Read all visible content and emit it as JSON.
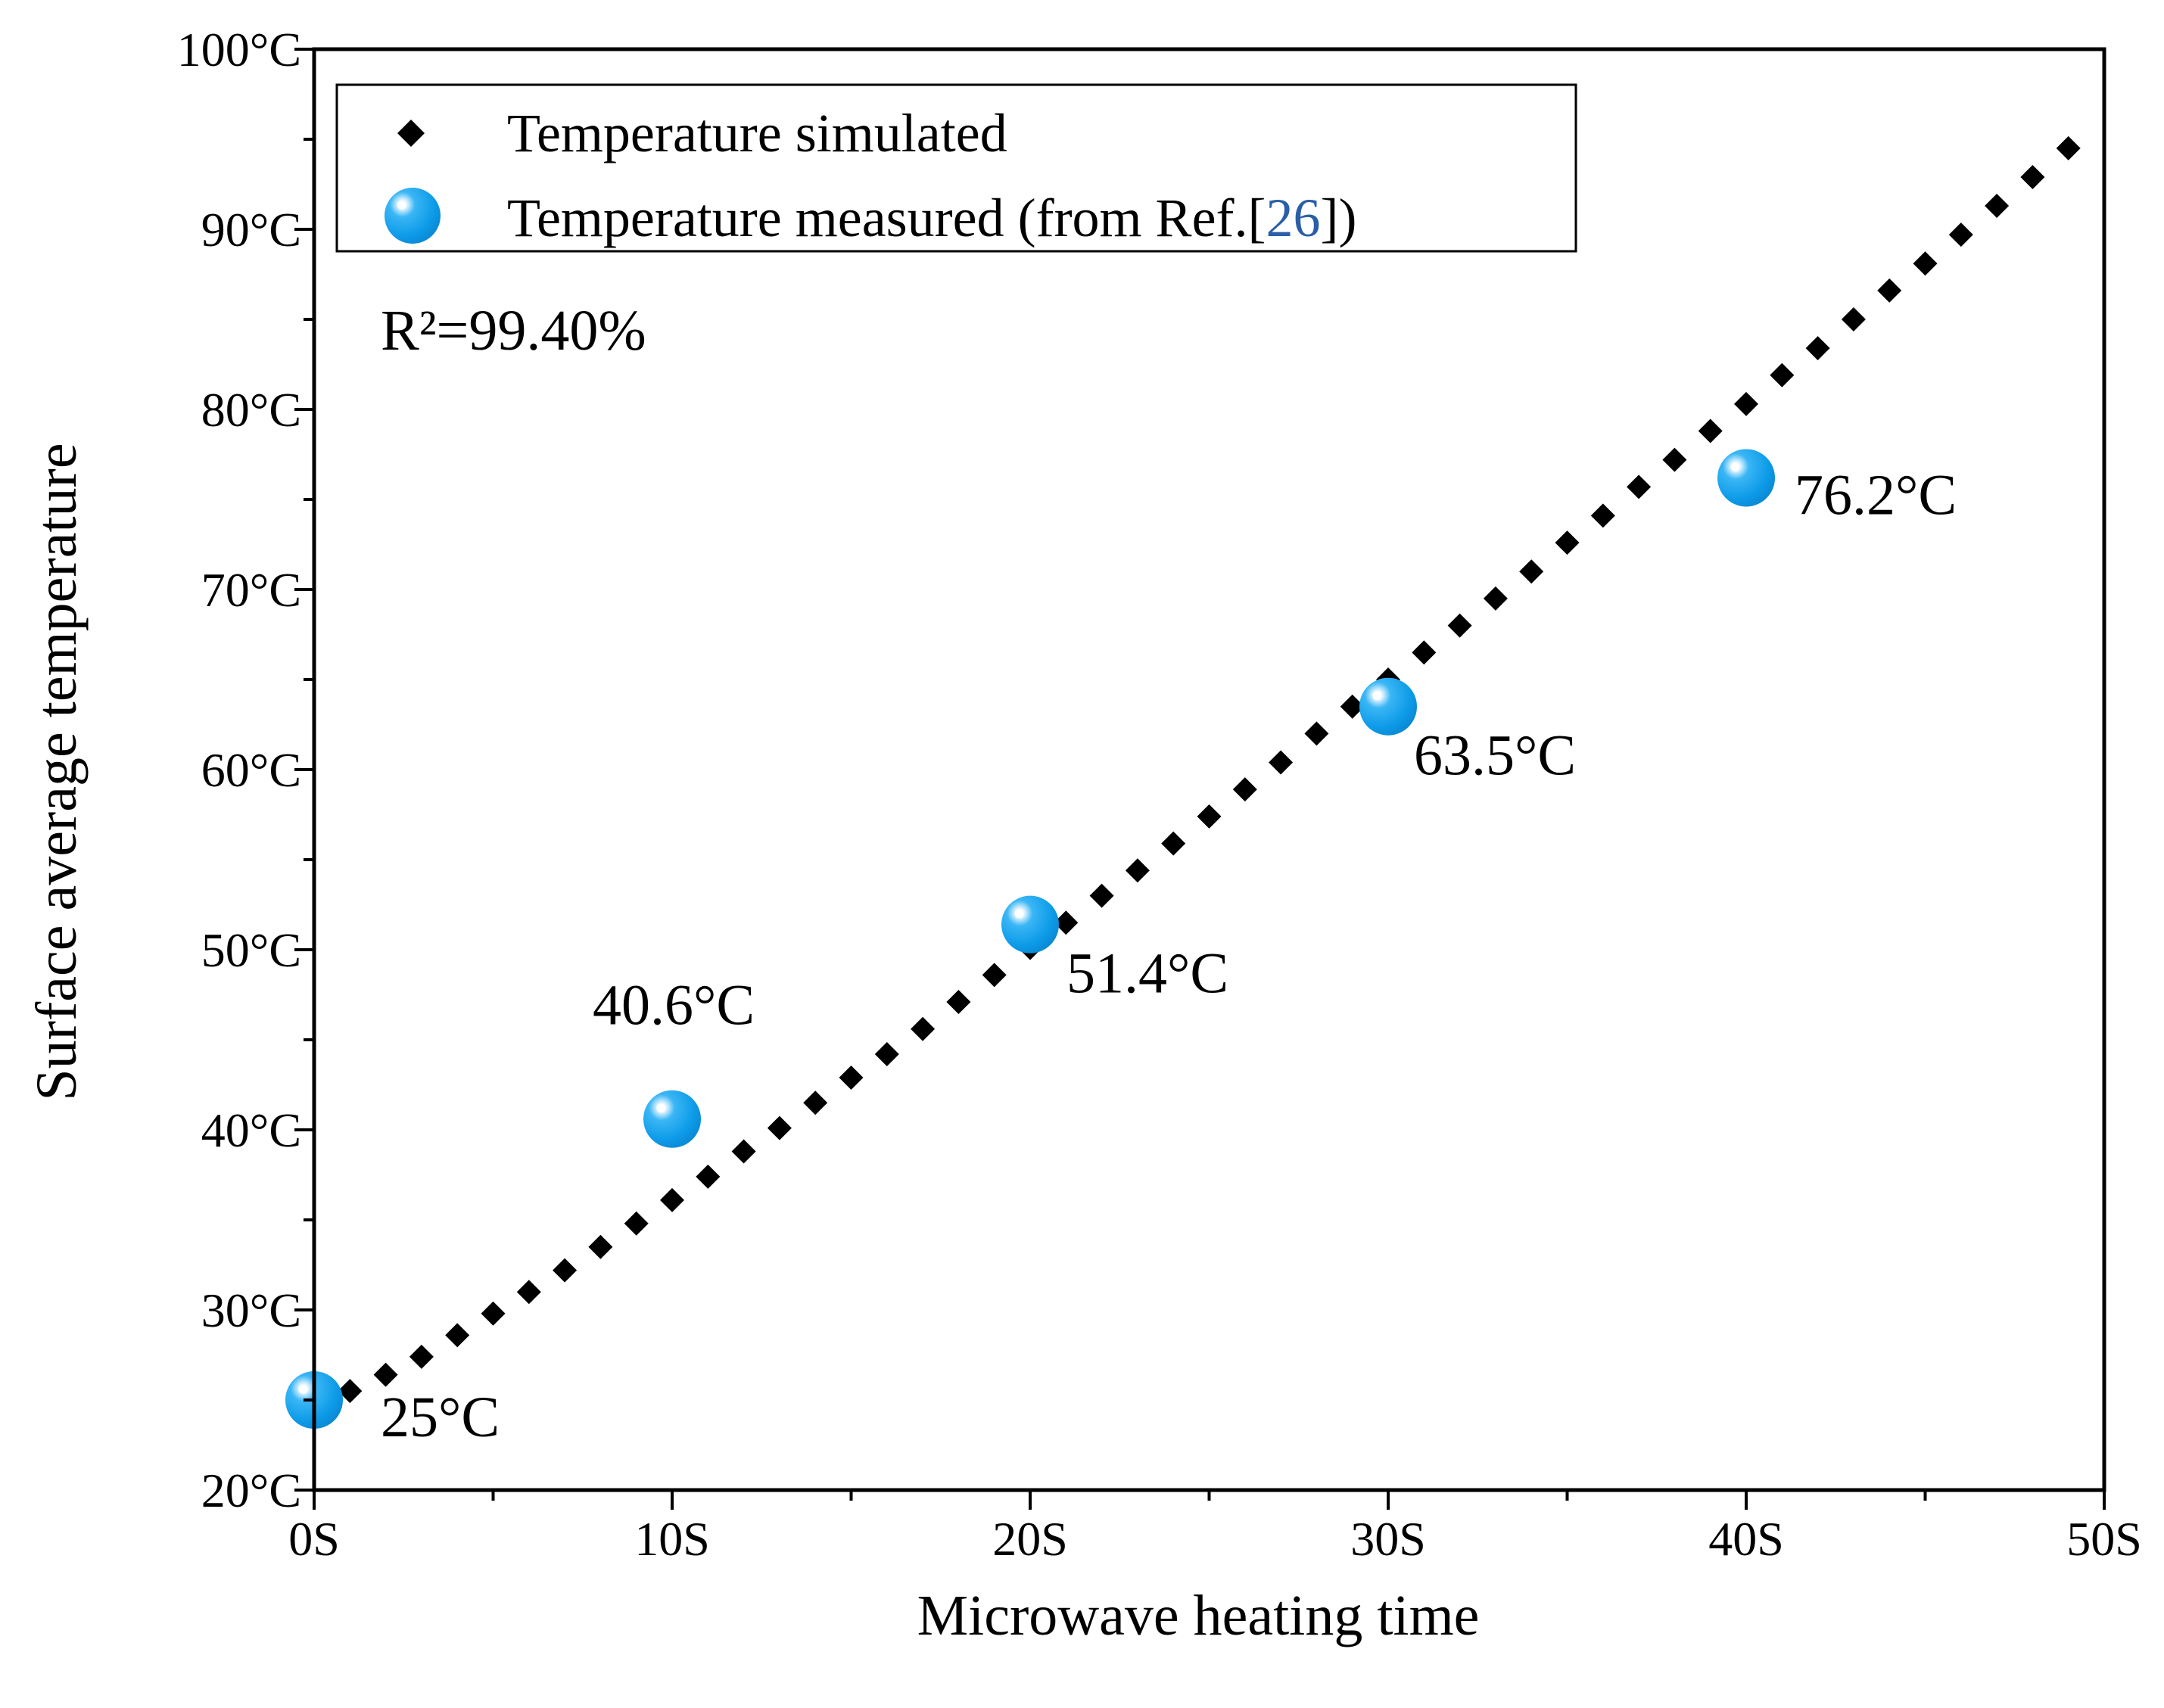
{
  "chart_data": {
    "type": "scatter",
    "xlabel": "Microwave heating time",
    "ylabel": "Surface average temperature",
    "xlim": [
      0,
      50
    ],
    "ylim": [
      20,
      100
    ],
    "x_ticks": [
      "0S",
      "10S",
      "20S",
      "30S",
      "40S",
      "50S"
    ],
    "y_ticks": [
      "20°C",
      "30°C",
      "40°C",
      "50°C",
      "60°C",
      "70°C",
      "80°C",
      "90°C",
      "100°C"
    ],
    "grid": false,
    "legend": {
      "placement": "top-left",
      "items": [
        {
          "label": "Temperature simulated",
          "marker": "diamond",
          "color": "#000000"
        },
        {
          "label_prefix": "Temperature measured (from Ref.[",
          "label_ref": "26",
          "label_suffix": "])",
          "marker": "sphere",
          "color": "#1aa3f0"
        }
      ]
    },
    "annotation_r2": "R²=99.40%",
    "series": [
      {
        "name": "Temperature simulated",
        "marker": "diamond",
        "color": "#000000",
        "x": [
          1,
          2,
          3,
          4,
          5,
          6,
          7,
          8,
          9,
          10,
          11,
          12,
          13,
          14,
          15,
          16,
          17,
          18,
          19,
          20,
          21,
          22,
          23,
          24,
          25,
          26,
          27,
          28,
          29,
          30,
          31,
          32,
          33,
          34,
          35,
          36,
          37,
          38,
          39,
          40,
          41,
          42,
          43,
          44,
          45,
          46,
          47,
          48,
          49
        ],
        "y": [
          25.5,
          26.4,
          27.4,
          28.6,
          29.8,
          31.0,
          32.2,
          33.5,
          34.8,
          36.1,
          37.4,
          38.8,
          40.1,
          41.5,
          42.9,
          44.2,
          45.6,
          47.1,
          48.6,
          50.1,
          51.5,
          53.0,
          54.4,
          55.9,
          57.4,
          58.9,
          60.4,
          62.0,
          63.5,
          65.0,
          66.5,
          68.0,
          69.5,
          71.0,
          72.6,
          74.1,
          75.7,
          77.2,
          78.8,
          80.3,
          81.9,
          83.4,
          85.0,
          86.6,
          88.1,
          89.7,
          91.3,
          92.9,
          94.5
        ]
      },
      {
        "name": "Temperature measured (from Ref.[26])",
        "marker": "sphere",
        "color": "#1aa3f0",
        "x": [
          0,
          10,
          20,
          30,
          40
        ],
        "y": [
          25,
          40.6,
          51.4,
          63.5,
          76.2
        ],
        "labels": [
          "25°C",
          "40.6°C",
          "51.4°C",
          "63.5°C",
          "76.2°C"
        ]
      }
    ]
  }
}
